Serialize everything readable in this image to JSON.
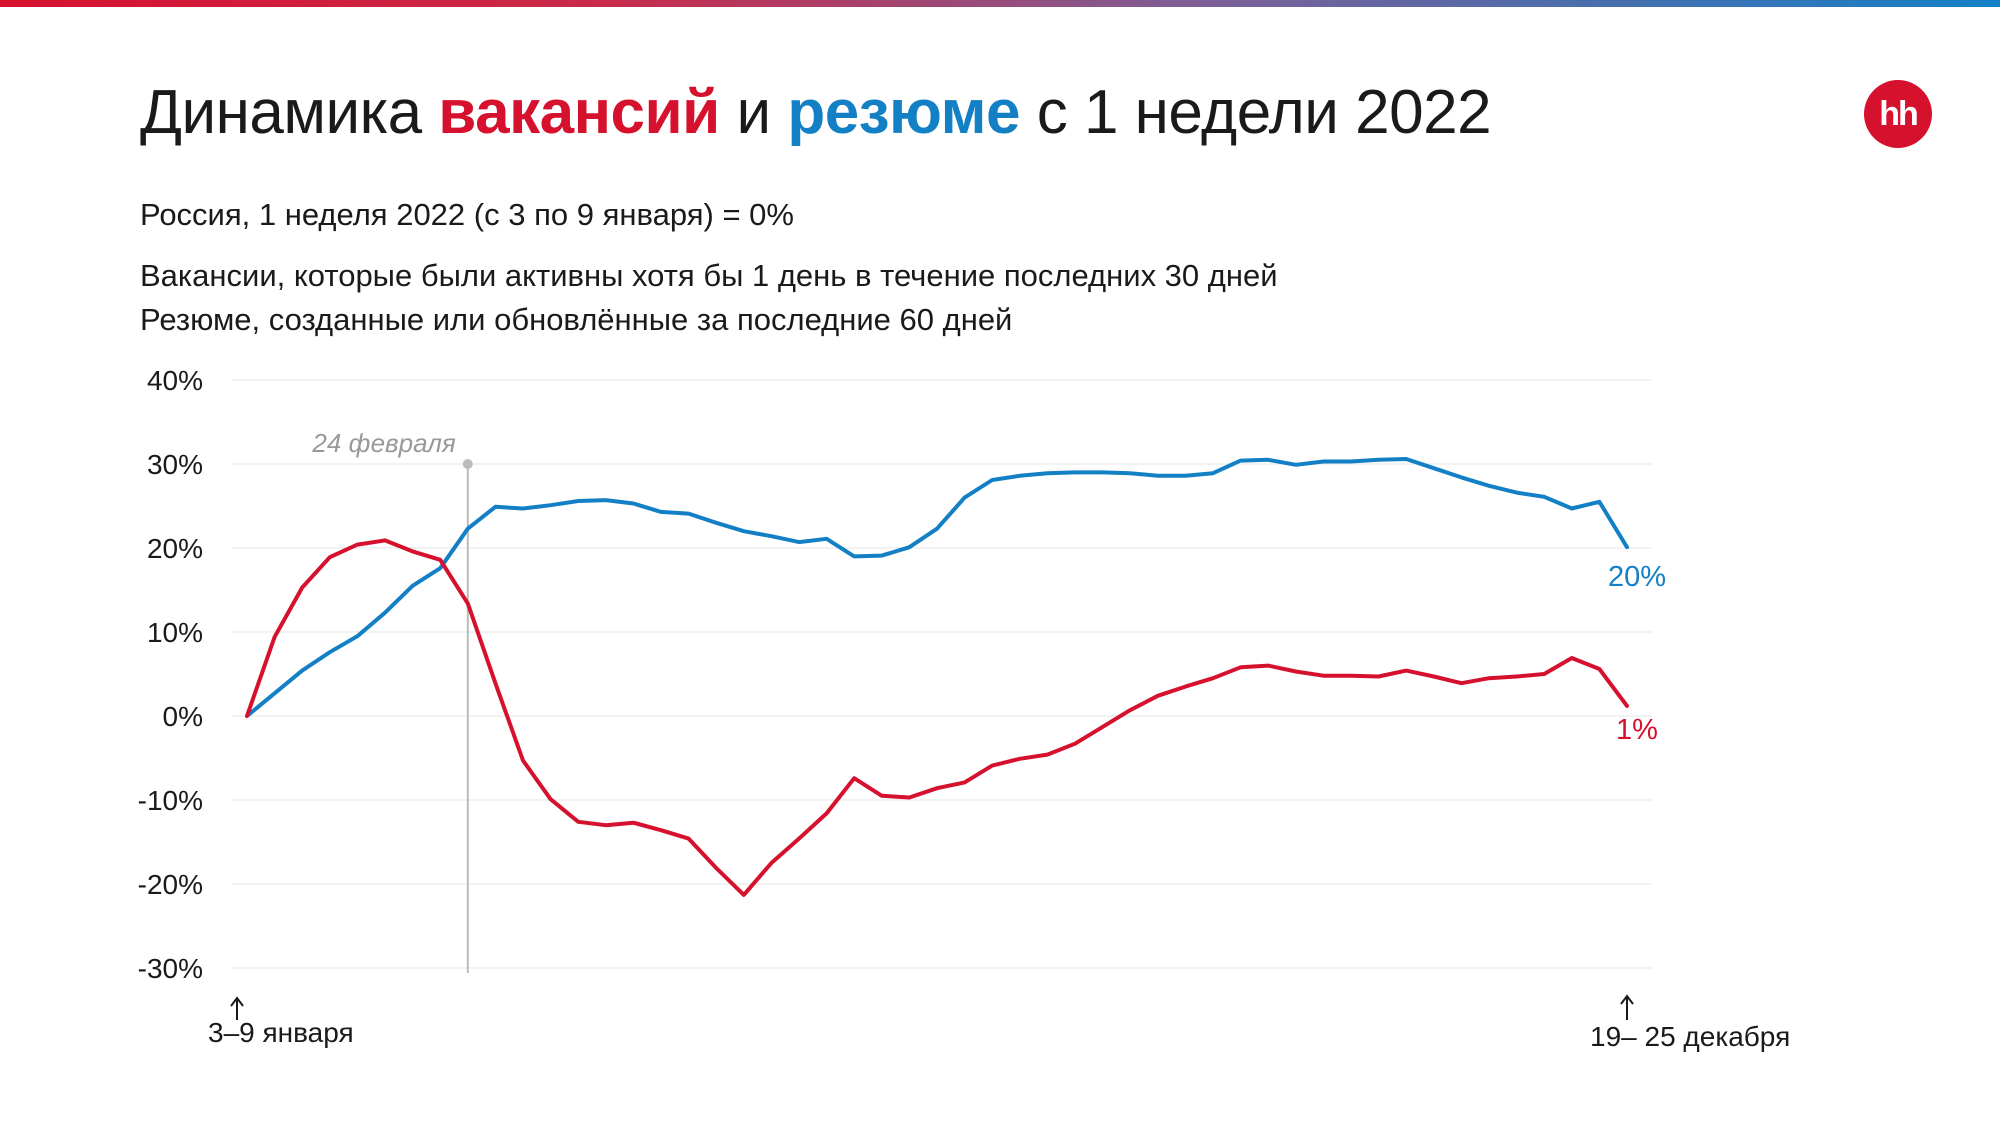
{
  "header": {
    "title_part1": "Динамика ",
    "title_vacancies": "вакансий",
    "title_part2": " и ",
    "title_resumes": "резюме",
    "title_part3": " с 1 недели 2022",
    "logo_text": "hh",
    "subtitle_base": "Россия, 1 неделя 2022 (с 3 по 9 января) = 0%",
    "subtitle_vacancies": "Вакансии, которые были активны хотя бы 1 день в течение последних 30 дней",
    "subtitle_resumes": "Резюме, созданные или обновлённые за последние 60 дней"
  },
  "colors": {
    "vacancies": "#d6112e",
    "resumes": "#1380c6",
    "grid": "#eeeeee",
    "annotation": "#bbbbbb"
  },
  "chart_data": {
    "type": "line",
    "ylim": [
      -30,
      40
    ],
    "yticks": [
      "40%",
      "30%",
      "20%",
      "10%",
      "0%",
      "-10%",
      "-20%",
      "-30%"
    ],
    "ytick_values": [
      40,
      30,
      20,
      10,
      0,
      -10,
      -20,
      -30
    ],
    "x_start_label": "3–9 января",
    "x_end_label": "19– 25 декабря",
    "annotation": {
      "label": "24 февраля",
      "week": 8
    },
    "weeks": [
      0,
      1,
      2,
      3,
      4,
      5,
      6,
      7,
      8,
      9,
      10,
      11,
      12,
      13,
      14,
      15,
      16,
      17,
      18,
      19,
      20,
      21,
      22,
      23,
      24,
      25,
      26,
      27,
      28,
      29,
      30,
      31,
      32,
      33,
      34,
      35,
      36,
      37,
      38,
      39,
      40,
      41,
      42,
      43,
      44,
      45,
      46,
      47,
      48,
      49,
      50
    ],
    "series": [
      {
        "key": "resumes",
        "end_label": "20%",
        "values": [
          0,
          2.7,
          5.4,
          7.6,
          9.5,
          12.3,
          15.5,
          17.6,
          22.3,
          24.9,
          24.7,
          25.1,
          25.6,
          25.7,
          25.3,
          24.3,
          24.1,
          23.0,
          22.0,
          21.4,
          20.7,
          21.1,
          19.0,
          19.1,
          20.1,
          22.3,
          26.0,
          28.1,
          28.6,
          28.9,
          29.0,
          29.0,
          28.9,
          28.6,
          28.6,
          28.9,
          30.4,
          30.5,
          29.9,
          30.3,
          30.3,
          30.5,
          30.6,
          29.5,
          28.4,
          27.4,
          26.6,
          26.1,
          24.7,
          25.5,
          20.1
        ]
      },
      {
        "key": "vacancies",
        "end_label": "1%",
        "values": [
          0,
          9.4,
          15.3,
          18.9,
          20.4,
          20.9,
          19.6,
          18.6,
          13.4,
          3.9,
          -5.3,
          -9.9,
          -12.6,
          -13.0,
          -12.7,
          -13.6,
          -14.6,
          -18.1,
          -21.3,
          -17.5,
          -14.6,
          -11.6,
          -7.4,
          -9.5,
          -9.7,
          -8.6,
          -7.9,
          -5.9,
          -5.1,
          -4.6,
          -3.3,
          -1.3,
          0.7,
          2.4,
          3.5,
          4.5,
          5.8,
          6.0,
          5.3,
          4.8,
          4.8,
          4.7,
          5.4,
          4.7,
          3.9,
          4.5,
          4.7,
          5.0,
          6.9,
          5.6,
          1.2
        ]
      }
    ]
  }
}
